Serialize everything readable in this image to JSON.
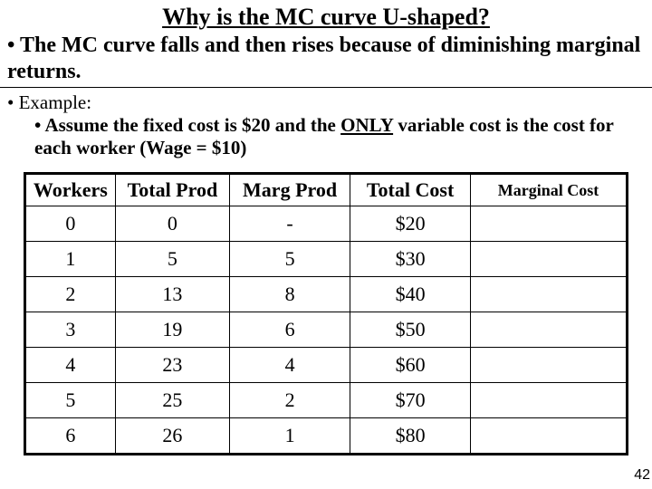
{
  "title": "Why is the MC curve U-shaped?",
  "main_bullet": "• The MC curve falls and then rises because of diminishing marginal returns.",
  "example_label": "• Example:",
  "assume_prefix": "• Assume the fixed cost is $20 and the ",
  "assume_only": "ONLY",
  "assume_suffix": " variable cost is the cost for each worker (Wage = $10)",
  "table": {
    "headers": {
      "workers": "Workers",
      "total_prod": "Total Prod",
      "marg_prod": "Marg Prod",
      "total_cost": "Total Cost",
      "marg_cost": "Marginal Cost"
    },
    "rows": [
      {
        "workers": "0",
        "total_prod": "0",
        "marg_prod": "-",
        "total_cost": "$20",
        "marg_cost": ""
      },
      {
        "workers": "1",
        "total_prod": "5",
        "marg_prod": "5",
        "total_cost": "$30",
        "marg_cost": ""
      },
      {
        "workers": "2",
        "total_prod": "13",
        "marg_prod": "8",
        "total_cost": "$40",
        "marg_cost": ""
      },
      {
        "workers": "3",
        "total_prod": "19",
        "marg_prod": "6",
        "total_cost": "$50",
        "marg_cost": ""
      },
      {
        "workers": "4",
        "total_prod": "23",
        "marg_prod": "4",
        "total_cost": "$60",
        "marg_cost": ""
      },
      {
        "workers": "5",
        "total_prod": "25",
        "marg_prod": "2",
        "total_cost": "$70",
        "marg_cost": ""
      },
      {
        "workers": "6",
        "total_prod": "26",
        "marg_prod": "1",
        "total_cost": "$80",
        "marg_cost": ""
      }
    ]
  },
  "page_number": "42",
  "colors": {
    "background": "#ffffff",
    "text": "#000000",
    "border": "#000000"
  }
}
